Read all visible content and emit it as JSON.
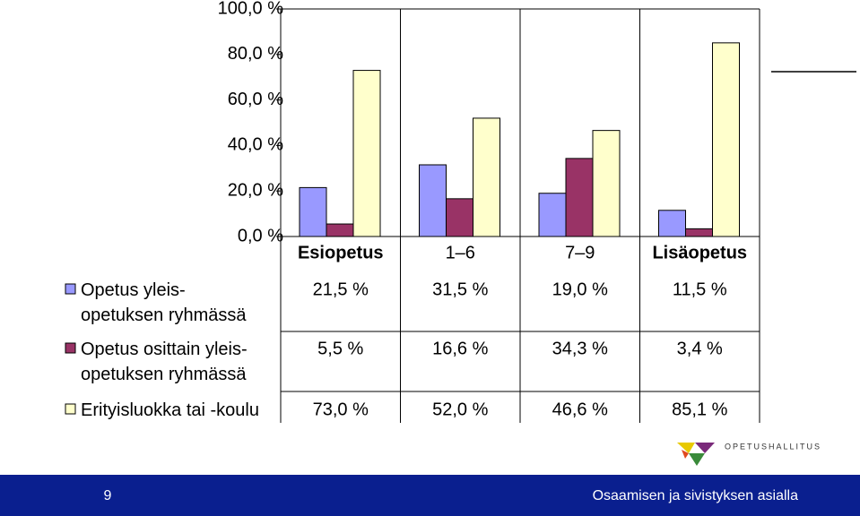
{
  "chart_data": {
    "type": "bar",
    "categories": [
      "Esiopetus",
      "1–6",
      "7–9",
      "Lisäopetus"
    ],
    "series": [
      {
        "name": "Opetus yleis-\nopetuksen ryhmässä",
        "color": "#9999ff",
        "values": [
          21.5,
          31.5,
          19.0,
          11.5
        ],
        "value_labels": [
          "21,5 %",
          "31,5 %",
          "19,0 %",
          "11,5 %"
        ]
      },
      {
        "name": "Opetus osittain yleis-\nopetuksen ryhmässä",
        "color": "#993366",
        "values": [
          5.5,
          16.6,
          34.3,
          3.4
        ],
        "value_labels": [
          "5,5 %",
          "16,6 %",
          "34,3 %",
          "3,4 %"
        ]
      },
      {
        "name": "Erityisluokka tai -koulu",
        "color": "#ffffcc",
        "values": [
          73.0,
          52.0,
          46.6,
          85.1
        ],
        "value_labels": [
          "73,0 %",
          "52,0 %",
          "46,6 %",
          "85,1 %"
        ]
      }
    ],
    "ylim": [
      0,
      100
    ],
    "yticks": [
      {
        "value": 0,
        "label": "0,0 %"
      },
      {
        "value": 20,
        "label": "20,0 %"
      },
      {
        "value": 40,
        "label": "40,0 %"
      },
      {
        "value": 60,
        "label": "60,0 %"
      },
      {
        "value": 80,
        "label": "80,0 %"
      },
      {
        "value": 100,
        "label": "100,0 %"
      }
    ]
  },
  "footer": {
    "page_number": "9",
    "slogan": "Osaamisen ja sivistyksen asialla",
    "logo_text": "OPETUSHALLITUS"
  }
}
